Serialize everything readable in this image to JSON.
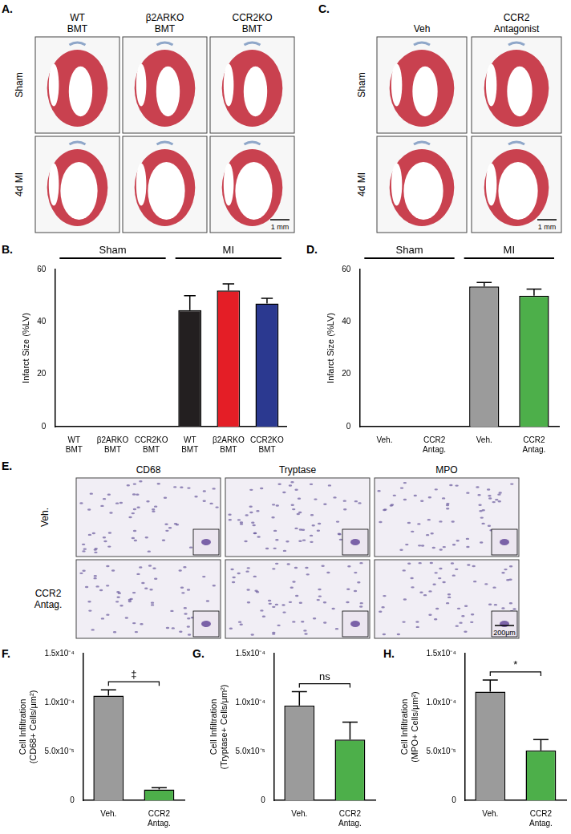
{
  "image_panels": [
    {
      "panel_label": "A.",
      "columns": [
        "WT BMT",
        "β2ARKO BMT",
        "CCR2KO BMT"
      ],
      "rows": [
        "Sham",
        "4d MI"
      ],
      "scale_bar": "1 mm"
    },
    {
      "panel_label": "C.",
      "columns": [
        "Veh",
        "CCR2 Antagonist"
      ],
      "rows": [
        "Sham",
        "4d MI"
      ],
      "scale_bar": "1 mm"
    },
    {
      "panel_label": "E.",
      "columns": [
        "CD68",
        "Tryptase",
        "MPO"
      ],
      "rows": [
        "Veh.",
        "CCR2 Antag."
      ],
      "scale_bar": "200μm"
    }
  ],
  "chart_data": [
    {
      "panel_label": "B.",
      "type": "bar",
      "y_label": [
        "Infarct Size (%LV)"
      ],
      "categories": [
        "WT BMT",
        "β2ARKO BMT",
        "CCR2KO BMT",
        "WT BMT",
        "β2ARKO BMT",
        "CCR2KO BMT"
      ],
      "values": [
        0,
        0,
        0,
        44.5,
        52,
        47
      ],
      "errors": [
        0,
        0,
        0,
        5.5,
        2.5,
        2
      ],
      "colors": [
        "#231f20",
        "#e41e26",
        "#2b3990",
        "#231f20",
        "#e41e26",
        "#2b3990"
      ],
      "groups": [
        {
          "label": "Sham",
          "span": 3
        },
        {
          "label": "MI",
          "span": 3
        }
      ],
      "ylim": [
        0,
        60
      ],
      "yticks": [
        0,
        20,
        40,
        60
      ],
      "grid": false
    },
    {
      "panel_label": "D.",
      "type": "bar",
      "y_label": [
        "Infarct Size (%LV)"
      ],
      "categories": [
        "Veh.",
        "CCR2 Antag.",
        "Veh.",
        "CCR2 Antag."
      ],
      "values": [
        0,
        0,
        53.5,
        50
      ],
      "errors": [
        0,
        0,
        1.5,
        2.5
      ],
      "colors": [
        "#9b9b9b",
        "#4daf4a",
        "#9b9b9b",
        "#4daf4a"
      ],
      "groups": [
        {
          "label": "Sham",
          "span": 2
        },
        {
          "label": "MI",
          "span": 2
        }
      ],
      "ylim": [
        0,
        60
      ],
      "yticks": [
        0,
        20,
        40,
        60
      ],
      "grid": false
    },
    {
      "panel_label": "F.",
      "type": "bar",
      "y_label": [
        "Cell Infiltration",
        "(CD68+ Cells/μm²)"
      ],
      "categories": [
        "Veh.",
        "CCR2 Antag."
      ],
      "values": [
        0.000107,
        1.1e-05
      ],
      "errors": [
        6e-06,
        2e-06
      ],
      "colors": [
        "#9b9b9b",
        "#4daf4a"
      ],
      "significance": "‡",
      "ylim": [
        0,
        0.00015
      ],
      "yticks": [
        0,
        {
          "value": 5e-05,
          "label": "5.0x10⁻⁵"
        },
        {
          "value": 0.0001,
          "label": "1.0x10⁻⁴"
        },
        {
          "value": 0.00015,
          "label": "1.5x10⁻⁴"
        }
      ],
      "grid": false
    },
    {
      "panel_label": "G.",
      "type": "bar",
      "y_label": [
        "Cell Infiltration",
        "(Tryptase+ Cells/μm²)"
      ],
      "categories": [
        "Veh.",
        "CCR2 Antag."
      ],
      "values": [
        9.7e-05,
        6.2e-05
      ],
      "errors": [
        1.4e-05,
        1.8e-05
      ],
      "colors": [
        "#9b9b9b",
        "#4daf4a"
      ],
      "significance": "ns",
      "ylim": [
        0,
        0.00015
      ],
      "yticks": [
        0,
        {
          "value": 5e-05,
          "label": "5.0x10⁻⁵"
        },
        {
          "value": 0.0001,
          "label": "1.0x10⁻⁴"
        },
        {
          "value": 0.00015,
          "label": "1.5x10⁻⁴"
        }
      ],
      "grid": false
    },
    {
      "panel_label": "H.",
      "type": "bar",
      "y_label": [
        "Cell Infiltration",
        "(MPO+ Cells/μm²)"
      ],
      "categories": [
        "Veh.",
        "CCR2 Antag."
      ],
      "values": [
        0.000111,
        5.1e-05
      ],
      "errors": [
        1.2e-05,
        1.1e-05
      ],
      "colors": [
        "#9b9b9b",
        "#4daf4a"
      ],
      "significance": "*",
      "ylim": [
        0,
        0.00015
      ],
      "yticks": [
        0,
        {
          "value": 5e-05,
          "label": "5.0x10⁻⁵"
        },
        {
          "value": 0.0001,
          "label": "1.0x10⁻⁴"
        },
        {
          "value": 0.00015,
          "label": "1.5x10⁻⁴"
        }
      ],
      "grid": false
    }
  ]
}
